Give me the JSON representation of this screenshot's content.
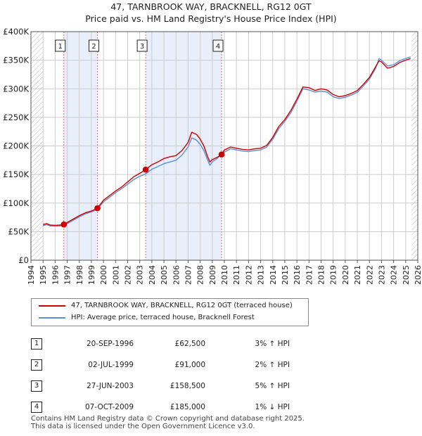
{
  "chart_data": {
    "type": "line",
    "title": "47, TARNBROOK WAY, BRACKNELL, RG12 0GT",
    "subtitle": "Price paid vs. HM Land Registry's House Price Index (HPI)",
    "ylabel": "",
    "xlabel": "",
    "xlim": [
      1994,
      2026
    ],
    "ylim": [
      0,
      400000
    ],
    "y_ticks": [
      0,
      50000,
      100000,
      150000,
      200000,
      250000,
      300000,
      350000,
      400000
    ],
    "y_tick_labels": [
      "£0",
      "£50K",
      "£100K",
      "£150K",
      "£200K",
      "£250K",
      "£300K",
      "£350K",
      "£400K"
    ],
    "x_ticks": [
      1994,
      1995,
      1996,
      1997,
      1998,
      1999,
      2000,
      2001,
      2002,
      2003,
      2004,
      2005,
      2006,
      2007,
      2008,
      2009,
      2010,
      2011,
      2012,
      2013,
      2014,
      2015,
      2016,
      2017,
      2018,
      2019,
      2020,
      2021,
      2022,
      2023,
      2024,
      2025,
      2026
    ],
    "data_range": [
      1995.0,
      2025.5
    ],
    "grid": true,
    "shaded_periods": [
      [
        1996.72,
        1999.5
      ],
      [
        2003.49,
        2009.77
      ]
    ],
    "series": [
      {
        "name": "47, TARNBROOK WAY, BRACKNELL, RG12 0GT (terraced house)",
        "color": "#cc0000",
        "points": [
          [
            1995.0,
            62500
          ],
          [
            1995.3,
            64000
          ],
          [
            1995.6,
            61500
          ],
          [
            1996.0,
            61000
          ],
          [
            1996.4,
            61500
          ],
          [
            1996.72,
            62500
          ],
          [
            1997.0,
            66000
          ],
          [
            1997.5,
            72000
          ],
          [
            1998.0,
            78000
          ],
          [
            1998.5,
            83000
          ],
          [
            1999.0,
            86000
          ],
          [
            1999.5,
            91000
          ],
          [
            2000.0,
            105000
          ],
          [
            2000.5,
            113000
          ],
          [
            2001.0,
            121000
          ],
          [
            2001.5,
            128000
          ],
          [
            2002.0,
            137000
          ],
          [
            2002.5,
            146000
          ],
          [
            2003.0,
            152000
          ],
          [
            2003.49,
            158500
          ],
          [
            2004.0,
            167000
          ],
          [
            2004.5,
            172000
          ],
          [
            2005.0,
            178000
          ],
          [
            2005.5,
            181000
          ],
          [
            2006.0,
            183000
          ],
          [
            2006.5,
            192000
          ],
          [
            2007.0,
            206000
          ],
          [
            2007.3,
            224000
          ],
          [
            2007.7,
            220000
          ],
          [
            2008.0,
            212000
          ],
          [
            2008.3,
            200000
          ],
          [
            2008.6,
            182000
          ],
          [
            2008.8,
            172000
          ],
          [
            2009.0,
            176000
          ],
          [
            2009.4,
            180000
          ],
          [
            2009.77,
            185000
          ],
          [
            2010.0,
            193000
          ],
          [
            2010.5,
            198000
          ],
          [
            2011.0,
            196000
          ],
          [
            2011.5,
            194000
          ],
          [
            2012.0,
            193000
          ],
          [
            2012.5,
            195000
          ],
          [
            2013.0,
            196000
          ],
          [
            2013.5,
            201000
          ],
          [
            2014.0,
            215000
          ],
          [
            2014.5,
            234000
          ],
          [
            2015.0,
            246000
          ],
          [
            2015.5,
            262000
          ],
          [
            2016.0,
            282000
          ],
          [
            2016.5,
            303000
          ],
          [
            2017.0,
            302000
          ],
          [
            2017.5,
            297000
          ],
          [
            2018.0,
            300000
          ],
          [
            2018.5,
            298000
          ],
          [
            2019.0,
            290000
          ],
          [
            2019.5,
            286000
          ],
          [
            2020.0,
            288000
          ],
          [
            2020.5,
            292000
          ],
          [
            2021.0,
            297000
          ],
          [
            2021.5,
            308000
          ],
          [
            2022.0,
            320000
          ],
          [
            2022.5,
            338000
          ],
          [
            2022.8,
            349000
          ],
          [
            2023.0,
            347000
          ],
          [
            2023.5,
            336000
          ],
          [
            2024.0,
            339000
          ],
          [
            2024.5,
            346000
          ],
          [
            2025.0,
            350000
          ],
          [
            2025.4,
            353000
          ]
        ]
      },
      {
        "name": "HPI: Average price, terraced house, Bracknell Forest",
        "color": "#5b8fd4",
        "points": [
          [
            1995.0,
            60500
          ],
          [
            1995.3,
            62000
          ],
          [
            1995.6,
            60000
          ],
          [
            1996.0,
            59500
          ],
          [
            1996.4,
            60000
          ],
          [
            1996.72,
            60500
          ],
          [
            1997.0,
            64000
          ],
          [
            1997.5,
            70000
          ],
          [
            1998.0,
            76000
          ],
          [
            1998.5,
            81000
          ],
          [
            1999.0,
            84500
          ],
          [
            1999.5,
            89000
          ],
          [
            2000.0,
            102000
          ],
          [
            2000.5,
            110000
          ],
          [
            2001.0,
            118000
          ],
          [
            2001.5,
            125000
          ],
          [
            2002.0,
            133000
          ],
          [
            2002.5,
            141000
          ],
          [
            2003.0,
            147000
          ],
          [
            2003.49,
            151000
          ],
          [
            2004.0,
            159000
          ],
          [
            2004.5,
            164000
          ],
          [
            2005.0,
            169000
          ],
          [
            2005.5,
            172000
          ],
          [
            2006.0,
            175000
          ],
          [
            2006.5,
            184000
          ],
          [
            2007.0,
            198000
          ],
          [
            2007.3,
            214000
          ],
          [
            2007.7,
            210000
          ],
          [
            2008.0,
            203000
          ],
          [
            2008.3,
            192000
          ],
          [
            2008.6,
            176000
          ],
          [
            2008.8,
            166000
          ],
          [
            2009.0,
            172000
          ],
          [
            2009.4,
            178000
          ],
          [
            2009.77,
            186000
          ],
          [
            2010.0,
            189000
          ],
          [
            2010.5,
            195000
          ],
          [
            2011.0,
            193000
          ],
          [
            2011.5,
            191000
          ],
          [
            2012.0,
            190000
          ],
          [
            2012.5,
            192000
          ],
          [
            2013.0,
            193000
          ],
          [
            2013.5,
            198000
          ],
          [
            2014.0,
            212000
          ],
          [
            2014.5,
            230000
          ],
          [
            2015.0,
            243000
          ],
          [
            2015.5,
            258000
          ],
          [
            2016.0,
            278000
          ],
          [
            2016.5,
            300000
          ],
          [
            2017.0,
            298000
          ],
          [
            2017.5,
            294000
          ],
          [
            2018.0,
            296000
          ],
          [
            2018.5,
            294000
          ],
          [
            2019.0,
            286000
          ],
          [
            2019.5,
            283000
          ],
          [
            2020.0,
            285000
          ],
          [
            2020.5,
            289000
          ],
          [
            2021.0,
            294000
          ],
          [
            2021.5,
            305000
          ],
          [
            2022.0,
            317000
          ],
          [
            2022.5,
            335000
          ],
          [
            2022.8,
            353000
          ],
          [
            2023.0,
            350000
          ],
          [
            2023.5,
            340000
          ],
          [
            2024.0,
            342000
          ],
          [
            2024.5,
            349000
          ],
          [
            2025.0,
            353000
          ],
          [
            2025.4,
            356000
          ]
        ]
      }
    ],
    "sales": [
      {
        "marker": "1",
        "x": 1996.72,
        "price": 62500
      },
      {
        "marker": "2",
        "x": 1999.5,
        "price": 91000
      },
      {
        "marker": "3",
        "x": 2003.49,
        "price": 158500
      },
      {
        "marker": "4",
        "x": 2009.77,
        "price": 185000
      }
    ]
  },
  "legend": {
    "property_label": "47, TARNBROOK WAY, BRACKNELL, RG12 0GT (terraced house)",
    "hpi_label": "HPI: Average price, terraced house, Bracknell Forest",
    "property_color": "#cc0000",
    "hpi_color": "#5b8fd4"
  },
  "transactions": [
    {
      "num": "1",
      "date": "20-SEP-1996",
      "price": "£62,500",
      "hpi": "3% ↑ HPI"
    },
    {
      "num": "2",
      "date": "02-JUL-1999",
      "price": "£91,000",
      "hpi": "2% ↑ HPI"
    },
    {
      "num": "3",
      "date": "27-JUN-2003",
      "price": "£158,500",
      "hpi": "5% ↑ HPI"
    },
    {
      "num": "4",
      "date": "07-OCT-2009",
      "price": "£185,000",
      "hpi": "1% ↓ HPI"
    }
  ],
  "footer": {
    "line1": "Contains HM Land Registry data © Crown copyright and database right 2025.",
    "line2": "This data is licensed under the Open Government Licence v3.0."
  }
}
